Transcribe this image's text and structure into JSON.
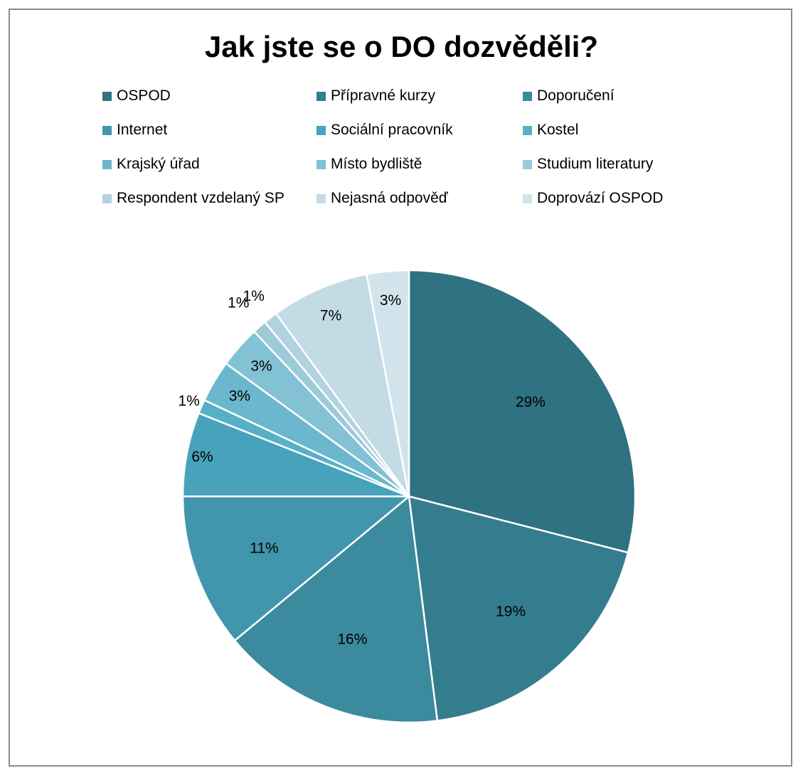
{
  "chart_data": {
    "type": "pie",
    "title": "Jak jste se o DO dozvěděli?",
    "legend_position": "top",
    "categories": [
      "OSPOD",
      "Přípravné kurzy",
      "Doporučení",
      "Internet",
      "Sociální pracovník",
      "Kostel",
      "Krajský úřad",
      "Místo bydliště",
      "Studium literatury",
      "Respondent vzdelaný SP",
      "Nejasná odpověď",
      "Doprovází OSPOD"
    ],
    "values": [
      29,
      19,
      16,
      11,
      6,
      1,
      3,
      3,
      1,
      1,
      7,
      3
    ],
    "data_labels": [
      "29%",
      "19%",
      "16%",
      "11%",
      "6%",
      "1%",
      "3%",
      "3%",
      "1%",
      "1%",
      "7%",
      "3%"
    ],
    "colors": [
      "#2f7282",
      "#347d8e",
      "#3b8a9e",
      "#4196ad",
      "#48a2bb",
      "#58b0c7",
      "#6bb7cd",
      "#83c1d4",
      "#9ccad9",
      "#b1d2de",
      "#c3dbe4",
      "#d1e4eb"
    ]
  }
}
